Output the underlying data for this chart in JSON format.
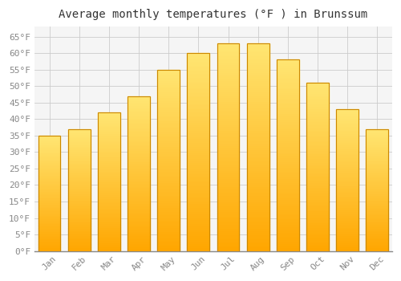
{
  "title": "Average monthly temperatures (°F ) in Brunssum",
  "months": [
    "Jan",
    "Feb",
    "Mar",
    "Apr",
    "May",
    "Jun",
    "Jul",
    "Aug",
    "Sep",
    "Oct",
    "Nov",
    "Dec"
  ],
  "values": [
    35,
    37,
    42,
    47,
    55,
    60,
    63,
    63,
    58,
    51,
    43,
    37
  ],
  "bar_color_main": "#FFA500",
  "bar_color_light": "#FFD580",
  "bar_edge_color": "#CC8800",
  "background_color": "#FFFFFF",
  "plot_bg_color": "#F5F5F5",
  "grid_color": "#CCCCCC",
  "yticks": [
    0,
    5,
    10,
    15,
    20,
    25,
    30,
    35,
    40,
    45,
    50,
    55,
    60,
    65
  ],
  "ylim": [
    0,
    68
  ],
  "title_fontsize": 10,
  "tick_fontsize": 8,
  "font_family": "monospace"
}
